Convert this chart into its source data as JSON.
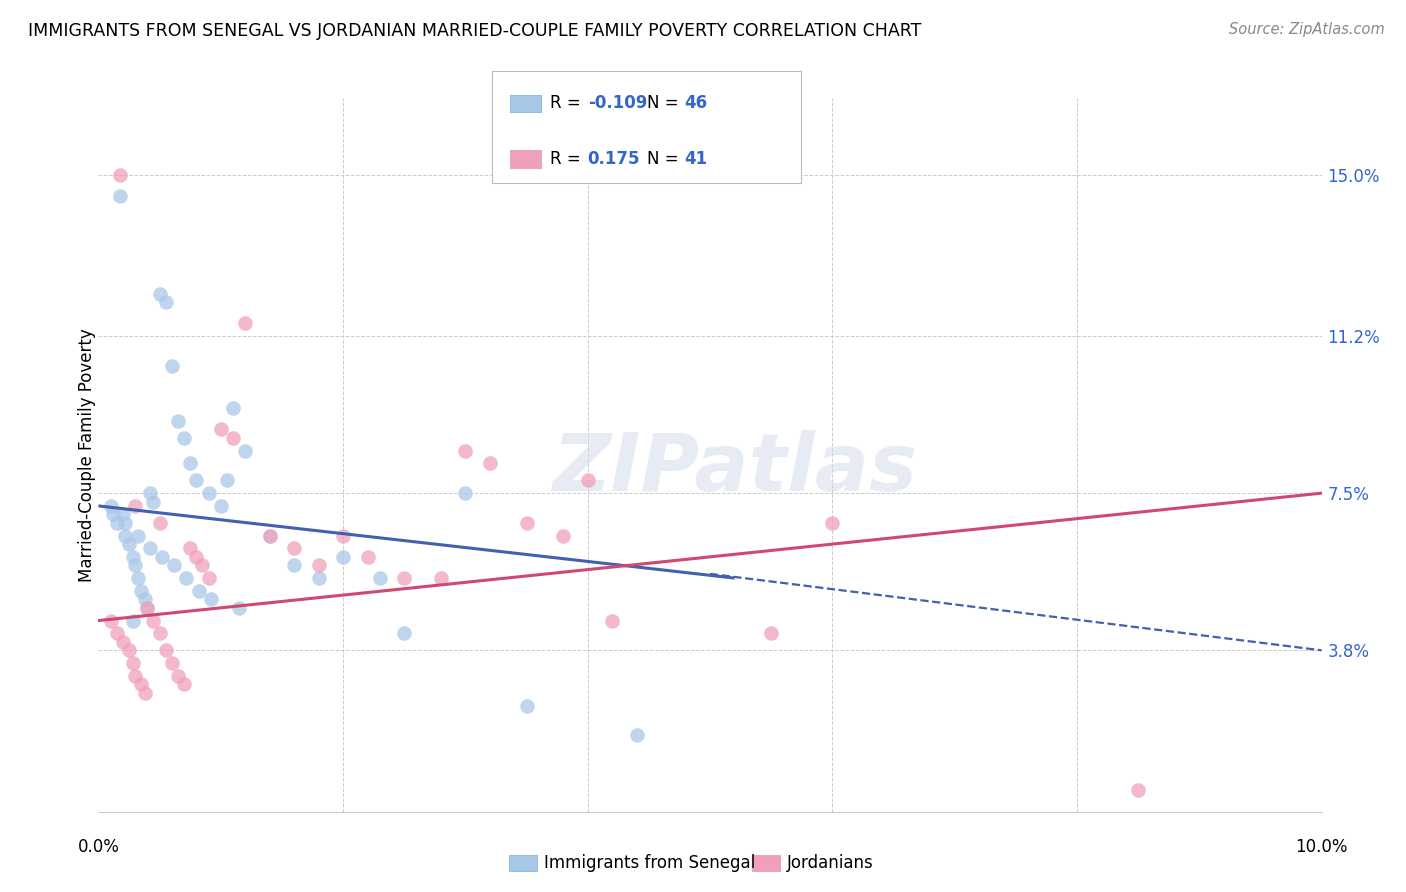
{
  "title": "IMMIGRANTS FROM SENEGAL VS JORDANIAN MARRIED-COUPLE FAMILY POVERTY CORRELATION CHART",
  "source": "Source: ZipAtlas.com",
  "ylabel": "Married-Couple Family Poverty",
  "ytick_labels": [
    "3.8%",
    "7.5%",
    "11.2%",
    "15.0%"
  ],
  "ytick_values": [
    3.8,
    7.5,
    11.2,
    15.0
  ],
  "xlim": [
    0.0,
    10.0
  ],
  "ylim": [
    0.0,
    16.8
  ],
  "legend_blue_r": "-0.109",
  "legend_blue_n": "46",
  "legend_pink_r": "0.175",
  "legend_pink_n": "41",
  "blue_color": "#a8c8e8",
  "pink_color": "#f0a0b8",
  "blue_line_color": "#4060b0",
  "pink_line_color": "#d04870",
  "blue_scatter_x": [
    0.1,
    0.15,
    0.18,
    0.2,
    0.22,
    0.25,
    0.28,
    0.3,
    0.32,
    0.35,
    0.38,
    0.4,
    0.42,
    0.45,
    0.5,
    0.55,
    0.6,
    0.65,
    0.7,
    0.75,
    0.8,
    0.9,
    1.0,
    1.1,
    1.2,
    1.4,
    1.6,
    1.8,
    2.0,
    2.3,
    2.5,
    3.0,
    3.5,
    0.12,
    0.22,
    0.32,
    0.42,
    0.52,
    0.62,
    0.72,
    0.82,
    0.92,
    1.05,
    4.4,
    1.15,
    0.28
  ],
  "blue_scatter_y": [
    7.2,
    6.8,
    14.5,
    7.0,
    6.5,
    6.3,
    6.0,
    5.8,
    5.5,
    5.2,
    5.0,
    4.8,
    7.5,
    7.3,
    12.2,
    12.0,
    10.5,
    9.2,
    8.8,
    8.2,
    7.8,
    7.5,
    7.2,
    9.5,
    8.5,
    6.5,
    5.8,
    5.5,
    6.0,
    5.5,
    4.2,
    7.5,
    2.5,
    7.0,
    6.8,
    6.5,
    6.2,
    6.0,
    5.8,
    5.5,
    5.2,
    5.0,
    7.8,
    1.8,
    4.8,
    4.5
  ],
  "pink_scatter_x": [
    0.1,
    0.15,
    0.18,
    0.2,
    0.25,
    0.28,
    0.3,
    0.35,
    0.38,
    0.4,
    0.45,
    0.5,
    0.55,
    0.6,
    0.65,
    0.7,
    0.75,
    0.8,
    0.85,
    0.9,
    1.0,
    1.1,
    1.2,
    1.4,
    1.6,
    1.8,
    2.0,
    2.5,
    3.0,
    3.2,
    3.5,
    3.8,
    4.0,
    4.2,
    5.5,
    6.0,
    8.5,
    0.3,
    0.5,
    2.2,
    2.8
  ],
  "pink_scatter_y": [
    4.5,
    4.2,
    15.0,
    4.0,
    3.8,
    3.5,
    3.2,
    3.0,
    2.8,
    4.8,
    4.5,
    4.2,
    3.8,
    3.5,
    3.2,
    3.0,
    6.2,
    6.0,
    5.8,
    5.5,
    9.0,
    8.8,
    11.5,
    6.5,
    6.2,
    5.8,
    6.5,
    5.5,
    8.5,
    8.2,
    6.8,
    6.5,
    7.8,
    4.5,
    4.2,
    6.8,
    0.5,
    7.2,
    6.8,
    6.0,
    5.5
  ],
  "blue_line_x0": 0.0,
  "blue_line_x1": 5.2,
  "blue_line_y0": 7.2,
  "blue_line_y1": 5.5,
  "blue_dash_x0": 5.0,
  "blue_dash_x1": 10.0,
  "blue_dash_y0": 5.6,
  "blue_dash_y1": 3.8,
  "pink_line_x0": 0.0,
  "pink_line_x1": 10.0,
  "pink_line_y0": 4.5,
  "pink_line_y1": 7.5,
  "watermark": "ZIPatlas",
  "background_color": "#ffffff",
  "grid_color": "#cccccc"
}
